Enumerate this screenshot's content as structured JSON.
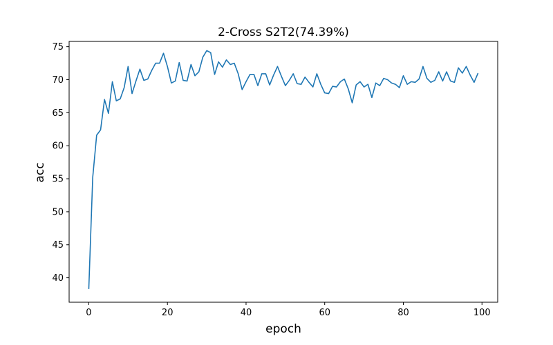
{
  "chart_data": {
    "type": "line",
    "title": "2-Cross S2T2(74.39%)",
    "xlabel": "epoch",
    "ylabel": "acc",
    "xlim": [
      -5,
      104
    ],
    "ylim": [
      36.3,
      75.8
    ],
    "xticks": [
      0,
      20,
      40,
      60,
      80,
      100
    ],
    "yticks": [
      40,
      45,
      50,
      55,
      60,
      65,
      70,
      75
    ],
    "grid": false,
    "line_color": "#1f77b4",
    "series": [
      {
        "x": [
          0,
          1,
          2,
          3,
          4,
          5,
          6,
          7,
          8,
          9,
          10,
          11,
          12,
          13,
          14,
          15,
          16,
          17,
          18,
          19,
          20,
          21,
          22,
          23,
          24,
          25,
          26,
          27,
          28,
          29,
          30,
          31,
          32,
          33,
          34,
          35,
          36,
          37,
          38,
          39,
          40,
          41,
          42,
          43,
          44,
          45,
          46,
          47,
          48,
          49,
          50,
          51,
          52,
          53,
          54,
          55,
          56,
          57,
          58,
          59,
          60,
          61,
          62,
          63,
          64,
          65,
          66,
          67,
          68,
          69,
          70,
          71,
          72,
          73,
          74,
          75,
          76,
          77,
          78,
          79,
          80,
          81,
          82,
          83,
          84,
          85,
          86,
          87,
          88,
          89,
          90,
          91,
          92,
          93,
          94,
          95,
          96,
          97,
          98,
          99
        ],
        "y": [
          38.3,
          55.2,
          61.6,
          62.4,
          67.0,
          64.9,
          69.7,
          66.8,
          67.1,
          68.8,
          72.0,
          67.9,
          69.8,
          71.6,
          69.9,
          70.1,
          71.4,
          72.5,
          72.5,
          74.0,
          72.0,
          69.5,
          69.8,
          72.6,
          69.9,
          69.8,
          72.3,
          70.6,
          71.2,
          73.4,
          74.4,
          74.1,
          70.8,
          72.7,
          71.9,
          73.0,
          72.3,
          72.5,
          70.9,
          68.5,
          69.7,
          70.8,
          70.8,
          69.1,
          70.9,
          70.9,
          69.2,
          70.7,
          72.0,
          70.5,
          69.1,
          69.9,
          70.9,
          69.4,
          69.3,
          70.4,
          69.6,
          68.9,
          70.9,
          69.3,
          68.0,
          67.9,
          69.0,
          68.9,
          69.7,
          70.1,
          68.6,
          66.5,
          69.2,
          69.7,
          68.9,
          69.3,
          67.3,
          69.5,
          69.1,
          70.2,
          70.0,
          69.5,
          69.3,
          68.8,
          70.6,
          69.3,
          69.7,
          69.6,
          70.1,
          72.0,
          70.2,
          69.6,
          69.9,
          71.2,
          69.8,
          71.2,
          69.8,
          69.6,
          71.8,
          71.0,
          72.0,
          70.7,
          69.6,
          71.0
        ]
      }
    ]
  }
}
